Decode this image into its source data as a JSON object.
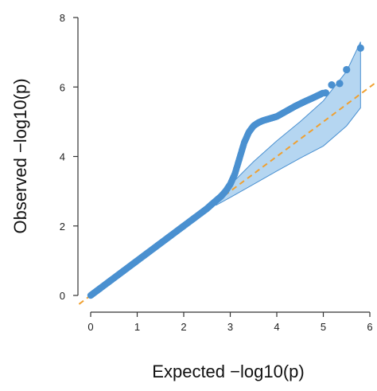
{
  "chart_data": {
    "type": "scatter",
    "xlabel": "Expected  −log10(p)",
    "ylabel": "Observed  −log10(p)",
    "xlim": [
      0,
      6
    ],
    "ylim": [
      0,
      8
    ],
    "xticks": [
      "0",
      "1",
      "2",
      "3",
      "4",
      "5",
      "6"
    ],
    "yticks": [
      "0",
      "2",
      "4",
      "6",
      "8"
    ],
    "grid": false,
    "legend": "none",
    "colors": {
      "points": "#4a90d0",
      "reference_line": "#f0a030",
      "band_fill": "#a8cfef",
      "band_stroke": "#4a90d0"
    },
    "reference_line": {
      "slope": 1,
      "intercept": 0
    },
    "confidence_band": {
      "x": [
        2.7,
        3.0,
        3.5,
        4.0,
        4.5,
        5.0,
        5.5,
        5.8
      ],
      "lower": [
        2.6,
        2.82,
        3.2,
        3.58,
        3.95,
        4.3,
        4.88,
        5.4
      ],
      "upper": [
        2.8,
        3.18,
        3.85,
        4.45,
        5.0,
        5.6,
        6.45,
        7.3
      ]
    },
    "observed_curve": {
      "x": [
        0,
        0.5,
        1.0,
        1.5,
        2.0,
        2.5,
        2.6,
        2.8,
        2.9,
        3.0,
        3.1,
        3.2,
        3.3,
        3.4,
        3.5,
        3.6,
        3.7,
        3.8,
        4.0,
        4.2,
        4.4,
        4.6,
        4.8,
        5.0
      ],
      "y": [
        0,
        0.5,
        1.0,
        1.5,
        2.0,
        2.5,
        2.62,
        2.85,
        3.0,
        3.2,
        3.5,
        3.95,
        4.4,
        4.7,
        4.88,
        4.97,
        5.03,
        5.07,
        5.15,
        5.3,
        5.45,
        5.58,
        5.7,
        5.83
      ]
    },
    "top_points": [
      {
        "x": 5.05,
        "y": 5.83
      },
      {
        "x": 5.18,
        "y": 6.06
      },
      {
        "x": 5.35,
        "y": 6.1
      },
      {
        "x": 5.5,
        "y": 6.5
      },
      {
        "x": 5.8,
        "y": 7.12
      }
    ]
  }
}
